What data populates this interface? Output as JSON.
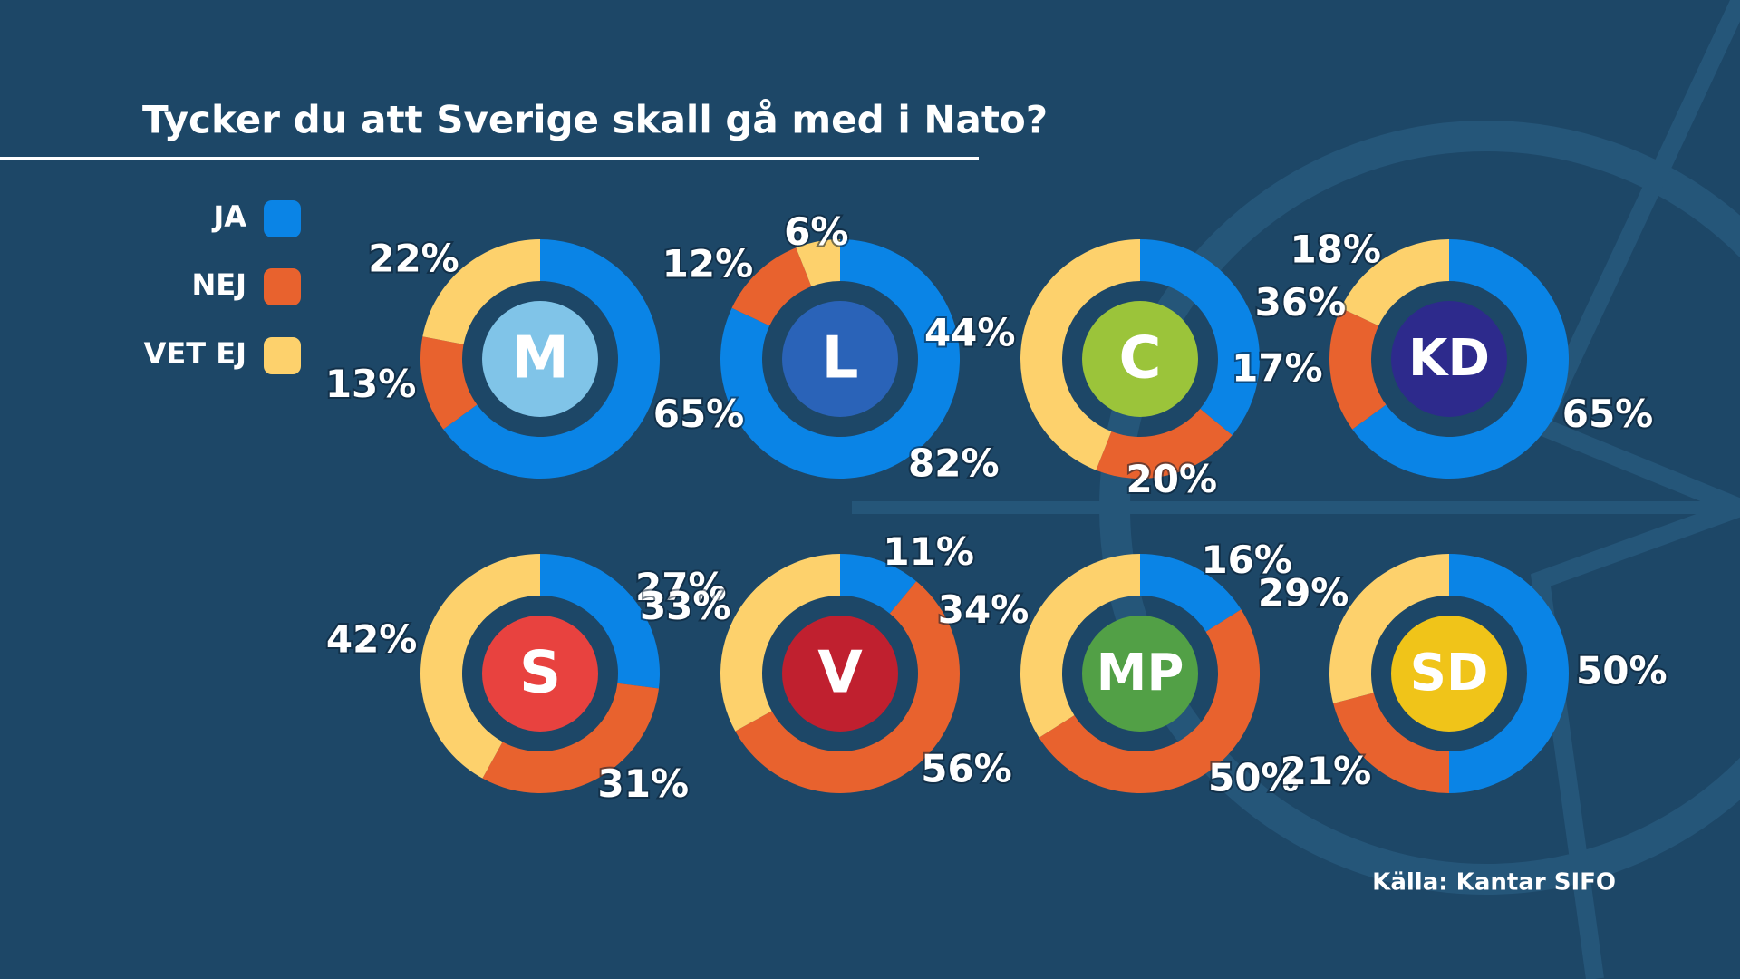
{
  "title": "Tycker du att Sverige skall gå med i Nato?",
  "source": "Källa: Kantar SIFO",
  "chart_data": [
    {
      "type": "donut",
      "title": "M",
      "title_color": "#80c4e8",
      "categories": [
        "JA",
        "NEJ",
        "VET EJ"
      ],
      "colors": [
        "#0a84e6",
        "#e8622e",
        "#fdd16c"
      ],
      "values": [
        65,
        13,
        22
      ],
      "value_labels": [
        "65%",
        "13%",
        "22%"
      ]
    },
    {
      "type": "donut",
      "title": "L",
      "title_color": "#2a63b8",
      "categories": [
        "JA",
        "NEJ",
        "VET EJ"
      ],
      "colors": [
        "#0a84e6",
        "#e8622e",
        "#fdd16c"
      ],
      "values": [
        82,
        12,
        6
      ],
      "value_labels": [
        "82%",
        "12%",
        "6%"
      ]
    },
    {
      "type": "donut",
      "title": "C",
      "title_color": "#9bc43a",
      "categories": [
        "JA",
        "NEJ",
        "VET EJ"
      ],
      "colors": [
        "#0a84e6",
        "#e8622e",
        "#fdd16c"
      ],
      "values": [
        36,
        20,
        44
      ],
      "value_labels": [
        "36%",
        "20%",
        "44%"
      ]
    },
    {
      "type": "donut",
      "title": "KD",
      "title_color": "#2d2a8c",
      "categories": [
        "JA",
        "NEJ",
        "VET EJ"
      ],
      "colors": [
        "#0a84e6",
        "#e8622e",
        "#fdd16c"
      ],
      "values": [
        65,
        17,
        18
      ],
      "value_labels": [
        "65%",
        "17%",
        "18%"
      ]
    },
    {
      "type": "donut",
      "title": "S",
      "title_color": "#e8423f",
      "categories": [
        "JA",
        "NEJ",
        "VET EJ"
      ],
      "colors": [
        "#0a84e6",
        "#e8622e",
        "#fdd16c"
      ],
      "values": [
        27,
        31,
        42
      ],
      "value_labels": [
        "27%",
        "31%",
        "42%"
      ]
    },
    {
      "type": "donut",
      "title": "V",
      "title_color": "#c0202f",
      "categories": [
        "JA",
        "NEJ",
        "VET EJ"
      ],
      "colors": [
        "#0a84e6",
        "#e8622e",
        "#fdd16c"
      ],
      "values": [
        11,
        56,
        33
      ],
      "value_labels": [
        "11%",
        "56%",
        "33%"
      ]
    },
    {
      "type": "donut",
      "title": "MP",
      "title_color": "#52a046",
      "categories": [
        "JA",
        "NEJ",
        "VET EJ"
      ],
      "colors": [
        "#0a84e6",
        "#e8622e",
        "#fdd16c"
      ],
      "values": [
        16,
        50,
        34
      ],
      "value_labels": [
        "16%",
        "50%",
        "34%"
      ]
    },
    {
      "type": "donut",
      "title": "SD",
      "title_color": "#f0c419",
      "categories": [
        "JA",
        "NEJ",
        "VET EJ"
      ],
      "colors": [
        "#0a84e6",
        "#e8622e",
        "#fdd16c"
      ],
      "values": [
        50,
        21,
        29
      ],
      "value_labels": [
        "50%",
        "21%",
        "29%"
      ]
    }
  ]
}
